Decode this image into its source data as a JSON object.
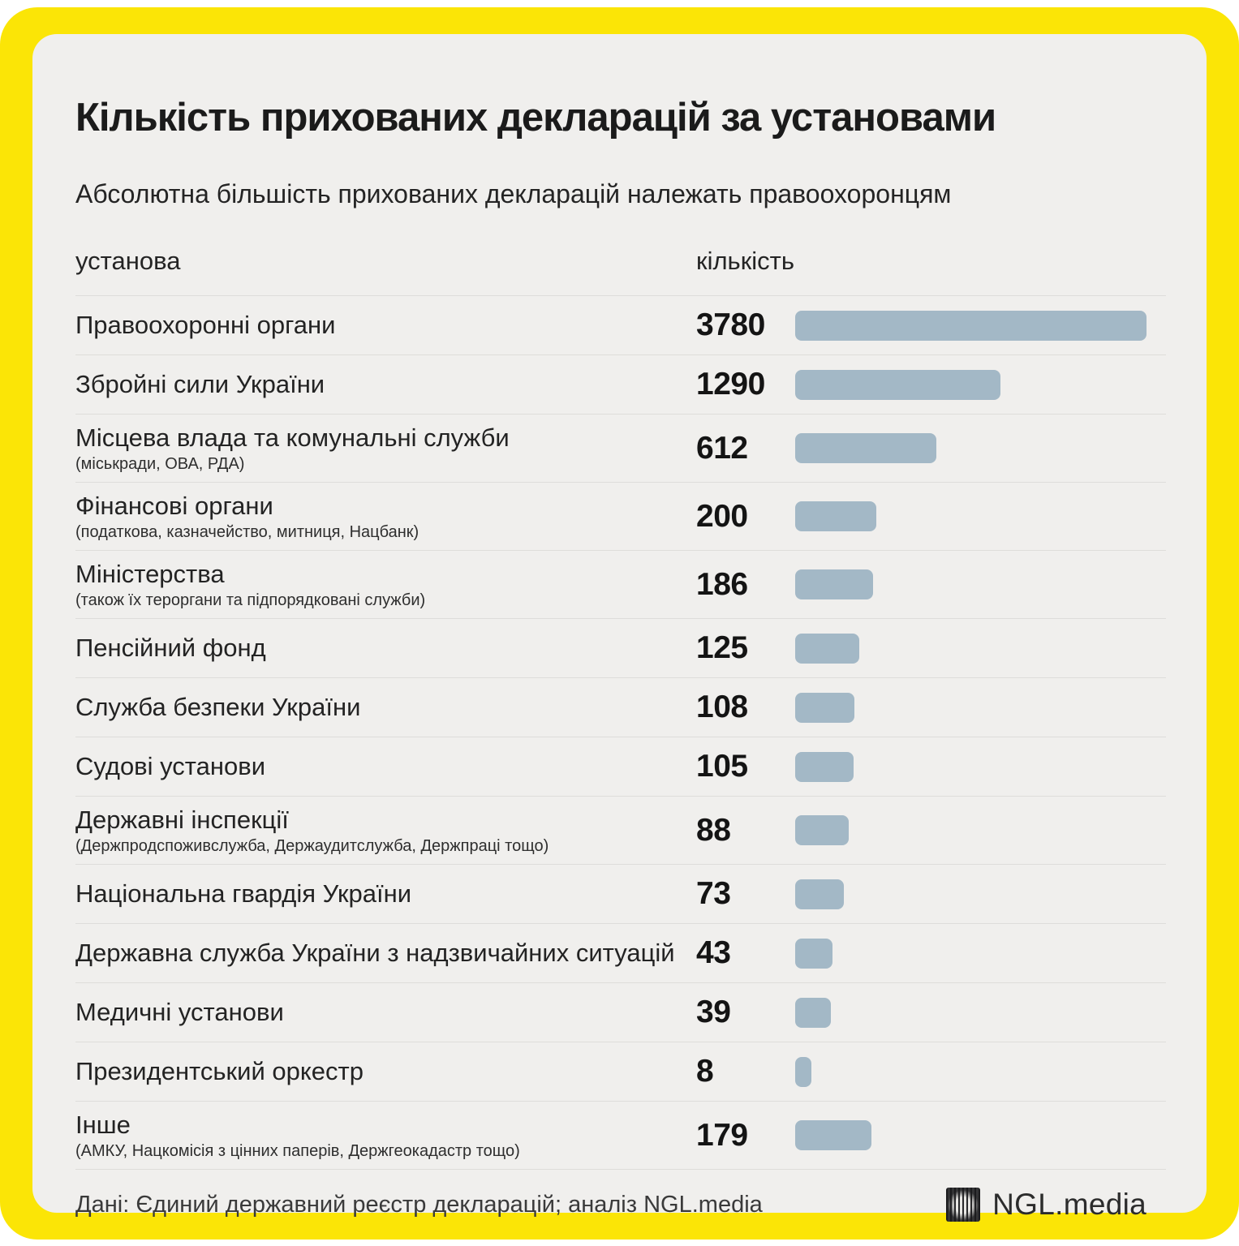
{
  "frame": {
    "border_color": "#fbe506",
    "card_background": "#f0efed"
  },
  "header": {
    "title": "Кількість прихованих декларацій за установами",
    "subtitle": "Абсолютна більшість прихованих декларацій належать правоохоронцям"
  },
  "table": {
    "col_institution": "установа",
    "col_count": "кількість"
  },
  "chart_data": {
    "type": "bar",
    "orientation": "horizontal",
    "title": "Кількість прихованих декларацій за установами",
    "subtitle": "Абсолютна більшість прихованих декларацій належать правоохоронцям",
    "xlabel": "кількість",
    "ylabel": "установа",
    "value_scale": "sqrt",
    "xlim": [
      0,
      3780
    ],
    "bar_color": "#a3b8c6",
    "grid": false,
    "legend": false,
    "categories": [
      "Правоохоронні органи",
      "Збройні сили України",
      "Місцева влада та комунальні служби",
      "Фінансові органи",
      "Міністерства",
      "Пенсійний фонд",
      "Служба безпеки України",
      "Судові установи",
      "Державні інспекції",
      "Національна гвардія України",
      "Державна служба України з надзвичайних ситуацій",
      "Медичні установи",
      "Президентський оркестр",
      "Інше"
    ],
    "category_notes": [
      null,
      null,
      "(міськради, ОВА, РДА)",
      "(податкова, казначейство, митниця, Нацбанк)",
      "(також їх тероргани та підпорядковані служби)",
      null,
      null,
      null,
      "(Держпродспоживслужба, Держаудитслужба, Держпраці тощо)",
      null,
      null,
      null,
      null,
      "(АМКУ, Нацкомісія з цінних паперів, Держгеокадастр тощо)"
    ],
    "values": [
      3780,
      1290,
      612,
      200,
      186,
      125,
      108,
      105,
      88,
      73,
      43,
      39,
      8,
      179
    ]
  },
  "footer": {
    "source": "Дані: Єдиний державний реєстр декларацій; аналіз NGL.media",
    "logo_text": "NGL.media"
  }
}
